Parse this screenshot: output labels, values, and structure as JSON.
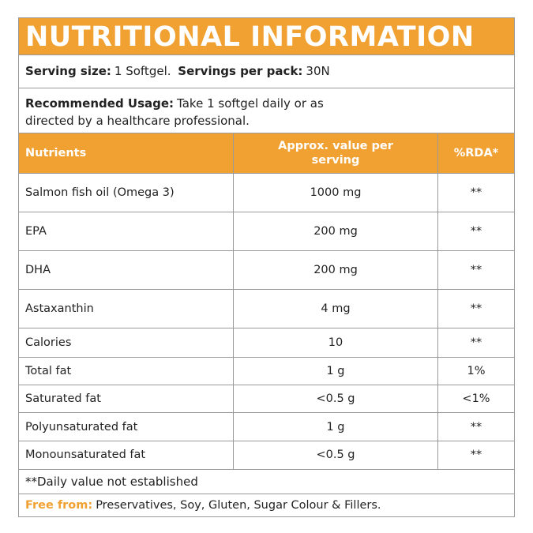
{
  "title": "NUTRITIONAL INFORMATION",
  "serving": {
    "size_label": "Serving size:",
    "size_value": "1 Softgel.",
    "per_pack_label": "Servings per pack:",
    "per_pack_value": "30N"
  },
  "usage": {
    "label": "Recommended Usage:",
    "text": "Take 1 softgel daily or as directed by a healthcare professional."
  },
  "table": {
    "header": [
      "Nutrients",
      "Approx. value per serving",
      "%RDA*"
    ],
    "rows": [
      [
        "Salmon fish oil (Omega 3)",
        "1000 mg",
        "**"
      ],
      [
        "EPA",
        "200 mg",
        "**"
      ],
      [
        "DHA",
        "200 mg",
        "**"
      ],
      [
        "Astaxanthin",
        "4 mg",
        "**"
      ],
      [
        "Calories",
        "10",
        "**"
      ],
      [
        "Total fat",
        "1 g",
        "1%"
      ],
      [
        "Saturated fat",
        "<0.5 g",
        "<1%"
      ],
      [
        "Polyunsaturated fat",
        "1 g",
        "**"
      ],
      [
        "Monounsaturated fat",
        "<0.5 g",
        "**"
      ]
    ]
  },
  "footnote": "**Daily value not established",
  "free_from": {
    "label": "Free from:",
    "text": "Preservatives, Soy, Gluten, Sugar Colour & Fillers."
  }
}
